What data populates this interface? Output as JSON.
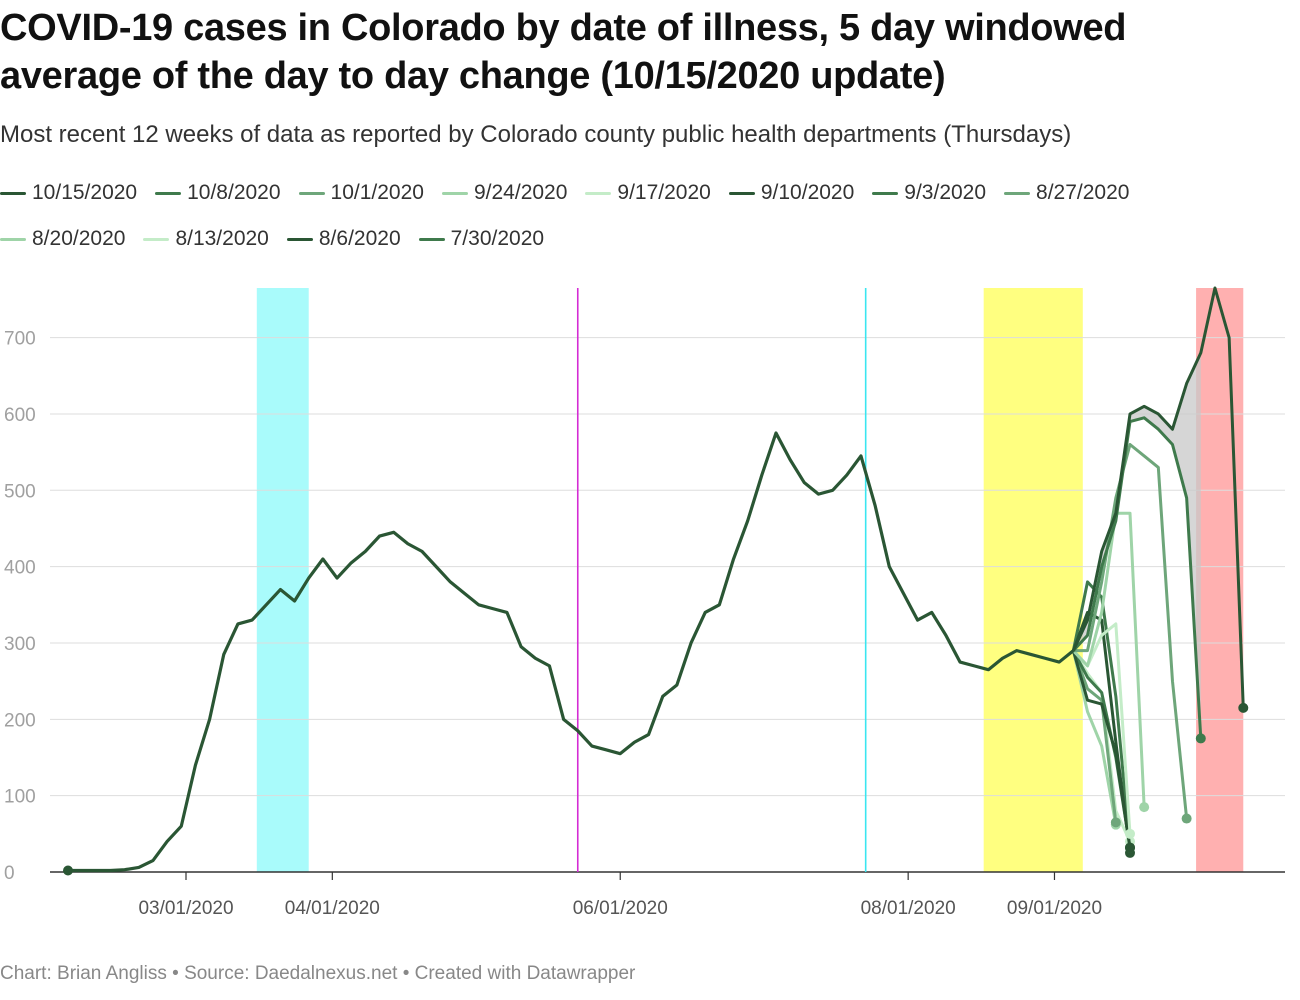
{
  "title_line1": "COVID-19 cases in Colorado by date of illness, 5 day windowed",
  "title_line2": "average of the day to day change (10/15/2020 update)",
  "subtitle": "Most recent 12 weeks of data as reported by Colorado county public health departments (Thursdays)",
  "footer": "Chart: Brian Angliss • Source: Daedalnexus.net • Created with Datawrapper",
  "legend": [
    {
      "label": "10/15/2020",
      "color": "#2a5634"
    },
    {
      "label": "10/8/2020",
      "color": "#3f7a4c"
    },
    {
      "label": "10/1/2020",
      "color": "#6ea67a"
    },
    {
      "label": "9/24/2020",
      "color": "#9fd4a8"
    },
    {
      "label": "9/17/2020",
      "color": "#c4ecc8"
    },
    {
      "label": "9/10/2020",
      "color": "#2a5634"
    },
    {
      "label": "9/3/2020",
      "color": "#3f7a4c"
    },
    {
      "label": "8/27/2020",
      "color": "#6ea67a"
    },
    {
      "label": "8/20/2020",
      "color": "#9fd4a8"
    },
    {
      "label": "8/13/2020",
      "color": "#c4ecc8"
    },
    {
      "label": "8/6/2020",
      "color": "#2a5634"
    },
    {
      "label": "7/30/2020",
      "color": "#3f7a4c"
    }
  ],
  "chart_data": {
    "type": "line",
    "title": "COVID-19 cases in Colorado by date of illness, 5 day windowed average of the day to day change (10/15/2020 update)",
    "xlabel": "",
    "ylabel": "",
    "x_start": "2020-02-05",
    "x_step_days": 3,
    "ylim": [
      0,
      765
    ],
    "yticks": [
      0,
      100,
      200,
      300,
      400,
      500,
      600,
      700
    ],
    "xticks": [
      {
        "label": "03/01/2020",
        "day": 25
      },
      {
        "label": "04/01/2020",
        "day": 56
      },
      {
        "label": "06/01/2020",
        "day": 117
      },
      {
        "label": "08/01/2020",
        "day": 178
      },
      {
        "label": "09/01/2020",
        "day": 209
      }
    ],
    "shaded_bands": [
      {
        "color": "#a9fbfb",
        "day_start": 40,
        "day_end": 51
      },
      {
        "color": "#ffff80",
        "day_start": 194,
        "day_end": 215
      },
      {
        "color": "#ffb0b0",
        "day_start": 239,
        "day_end": 249
      }
    ],
    "vertical_lines": [
      {
        "color": "#d42cd4",
        "day": 108
      },
      {
        "color": "#3ae6f0",
        "day": 169
      }
    ],
    "base_values": [
      2,
      2,
      2,
      2,
      3,
      6,
      15,
      40,
      60,
      140,
      200,
      285,
      325,
      330,
      350,
      370,
      355,
      385,
      410,
      385,
      405,
      420,
      440,
      445,
      430,
      420,
      400,
      380,
      365,
      350,
      345,
      340,
      295,
      280,
      270,
      200,
      185,
      165,
      160,
      155,
      170,
      180,
      230,
      245,
      300,
      340,
      350,
      410,
      460,
      520,
      575,
      540,
      510,
      495,
      500,
      520,
      545,
      480,
      400,
      365,
      330,
      340,
      310,
      275,
      270,
      265,
      280,
      290,
      285,
      280,
      275,
      290
    ],
    "series": [
      {
        "name": "10/15/2020",
        "values": [
          330,
          420,
          470,
          600,
          610,
          600,
          580,
          640,
          680,
          765,
          700,
          215
        ]
      },
      {
        "name": "10/8/2020",
        "values": [
          310,
          400,
          460,
          590,
          595,
          580,
          560,
          490,
          175
        ]
      },
      {
        "name": "10/1/2020",
        "values": [
          290,
          380,
          490,
          560,
          545,
          530,
          250,
          70
        ]
      },
      {
        "name": "9/24/2020",
        "values": [
          270,
          340,
          470,
          470,
          85
        ]
      },
      {
        "name": "9/17/2020",
        "values": [
          270,
          310,
          325,
          50
        ]
      },
      {
        "name": "9/10/2020",
        "values": [
          225,
          220,
          155,
          32
        ]
      },
      {
        "name": "9/3/2020",
        "values": [
          255,
          235,
          150,
          32
        ]
      },
      {
        "name": "8/27/2020",
        "values": [
          240,
          225,
          65
        ]
      },
      {
        "name": "8/20/2020",
        "values": [
          210,
          165,
          62
        ]
      },
      {
        "name": "8/13/2020",
        "values": [
          260,
          235,
          80,
          40
        ]
      },
      {
        "name": "8/6/2020",
        "values": [
          340,
          330,
          170,
          25
        ]
      },
      {
        "name": "7/30/2020",
        "values": [
          380,
          360,
          230,
          32
        ]
      }
    ]
  }
}
